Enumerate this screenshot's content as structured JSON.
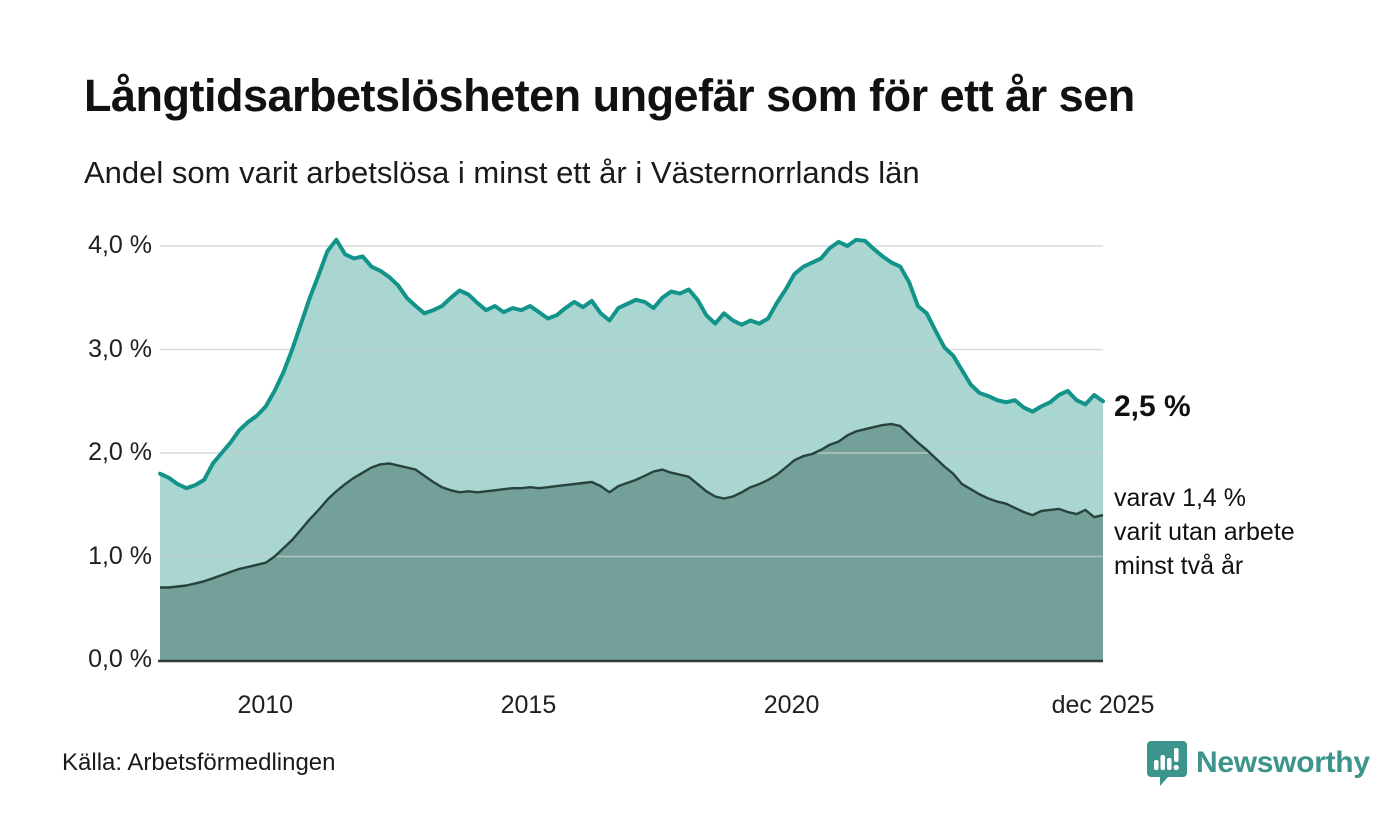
{
  "chart_data": {
    "type": "area",
    "title": "Långtidsarbetslösheten ungefär som för ett år sen",
    "subtitle": "Andel som varit arbetslösa i minst ett år i Västernorrlands län",
    "unit": "%",
    "x_min": 2008.0,
    "x_max": 2025.9167,
    "ylim": [
      0,
      4.35
    ],
    "grid": true,
    "legend_position": "end-of-line annotations",
    "y_ticks": [
      {
        "label": "0,0 %",
        "value": 0
      },
      {
        "label": "1,0 %",
        "value": 1
      },
      {
        "label": "2,0 %",
        "value": 2
      },
      {
        "label": "3,0 %",
        "value": 3
      },
      {
        "label": "4,0 %",
        "value": 4
      }
    ],
    "x_ticks": [
      {
        "label": "2010",
        "year": 2010
      },
      {
        "label": "2015",
        "year": 2015
      },
      {
        "label": "2020",
        "year": 2020
      },
      {
        "label": "dec 2025",
        "year": 2025.9167
      }
    ],
    "series": [
      {
        "name": "total",
        "end_label": "2,5 %",
        "end_value": 2.5,
        "values": [
          1.8,
          1.76,
          1.7,
          1.66,
          1.69,
          1.74,
          1.9,
          2.0,
          2.1,
          2.22,
          2.3,
          2.36,
          2.45,
          2.6,
          2.78,
          3.0,
          3.25,
          3.5,
          3.72,
          3.95,
          4.06,
          3.92,
          3.88,
          3.9,
          3.8,
          3.76,
          3.7,
          3.62,
          3.5,
          3.42,
          3.35,
          3.38,
          3.42,
          3.5,
          3.57,
          3.53,
          3.45,
          3.38,
          3.42,
          3.36,
          3.4,
          3.38,
          3.42,
          3.36,
          3.3,
          3.33,
          3.4,
          3.46,
          3.41,
          3.47,
          3.35,
          3.28,
          3.4,
          3.44,
          3.48,
          3.46,
          3.4,
          3.5,
          3.56,
          3.54,
          3.58,
          3.48,
          3.33,
          3.25,
          3.35,
          3.28,
          3.24,
          3.28,
          3.25,
          3.3,
          3.45,
          3.58,
          3.73,
          3.8,
          3.84,
          3.88,
          3.98,
          4.04,
          4.0,
          4.06,
          4.05,
          3.97,
          3.9,
          3.84,
          3.8,
          3.65,
          3.42,
          3.35,
          3.18,
          3.02,
          2.94,
          2.8,
          2.66,
          2.58,
          2.55,
          2.51,
          2.49,
          2.51,
          2.44,
          2.4,
          2.45,
          2.49,
          2.56,
          2.6,
          2.51,
          2.47,
          2.56,
          2.5
        ]
      },
      {
        "name": "two_year",
        "end_label": "varav 1,4 %\nvarit utan arbete\nminst två år",
        "end_value": 1.4,
        "values": [
          0.7,
          0.7,
          0.71,
          0.72,
          0.74,
          0.76,
          0.79,
          0.82,
          0.85,
          0.88,
          0.9,
          0.92,
          0.94,
          1.0,
          1.08,
          1.16,
          1.26,
          1.36,
          1.45,
          1.55,
          1.63,
          1.7,
          1.76,
          1.81,
          1.86,
          1.89,
          1.9,
          1.88,
          1.86,
          1.84,
          1.78,
          1.72,
          1.67,
          1.64,
          1.62,
          1.63,
          1.62,
          1.63,
          1.64,
          1.65,
          1.66,
          1.66,
          1.67,
          1.66,
          1.67,
          1.68,
          1.69,
          1.7,
          1.71,
          1.72,
          1.68,
          1.62,
          1.68,
          1.71,
          1.74,
          1.78,
          1.82,
          1.84,
          1.81,
          1.79,
          1.77,
          1.7,
          1.63,
          1.58,
          1.56,
          1.58,
          1.62,
          1.67,
          1.7,
          1.74,
          1.79,
          1.86,
          1.93,
          1.97,
          1.99,
          2.03,
          2.08,
          2.11,
          2.17,
          2.21,
          2.23,
          2.25,
          2.27,
          2.28,
          2.26,
          2.18,
          2.1,
          2.03,
          1.95,
          1.87,
          1.8,
          1.7,
          1.65,
          1.6,
          1.56,
          1.53,
          1.51,
          1.47,
          1.43,
          1.4,
          1.44,
          1.45,
          1.46,
          1.43,
          1.41,
          1.45,
          1.38,
          1.4
        ]
      }
    ]
  },
  "footer": {
    "source": "Källa: Arbetsförmedlingen",
    "brand": "Newsworthy"
  },
  "colors": {
    "total_line": "#12948a",
    "total_fill": "#a9d6d0",
    "two_year_line": "#28423c",
    "two_year_fill": "#74a09a",
    "gridline": "#c9d0d0",
    "axis": "#333b39",
    "brand": "#3c948c",
    "text": "#1a1a1a"
  }
}
